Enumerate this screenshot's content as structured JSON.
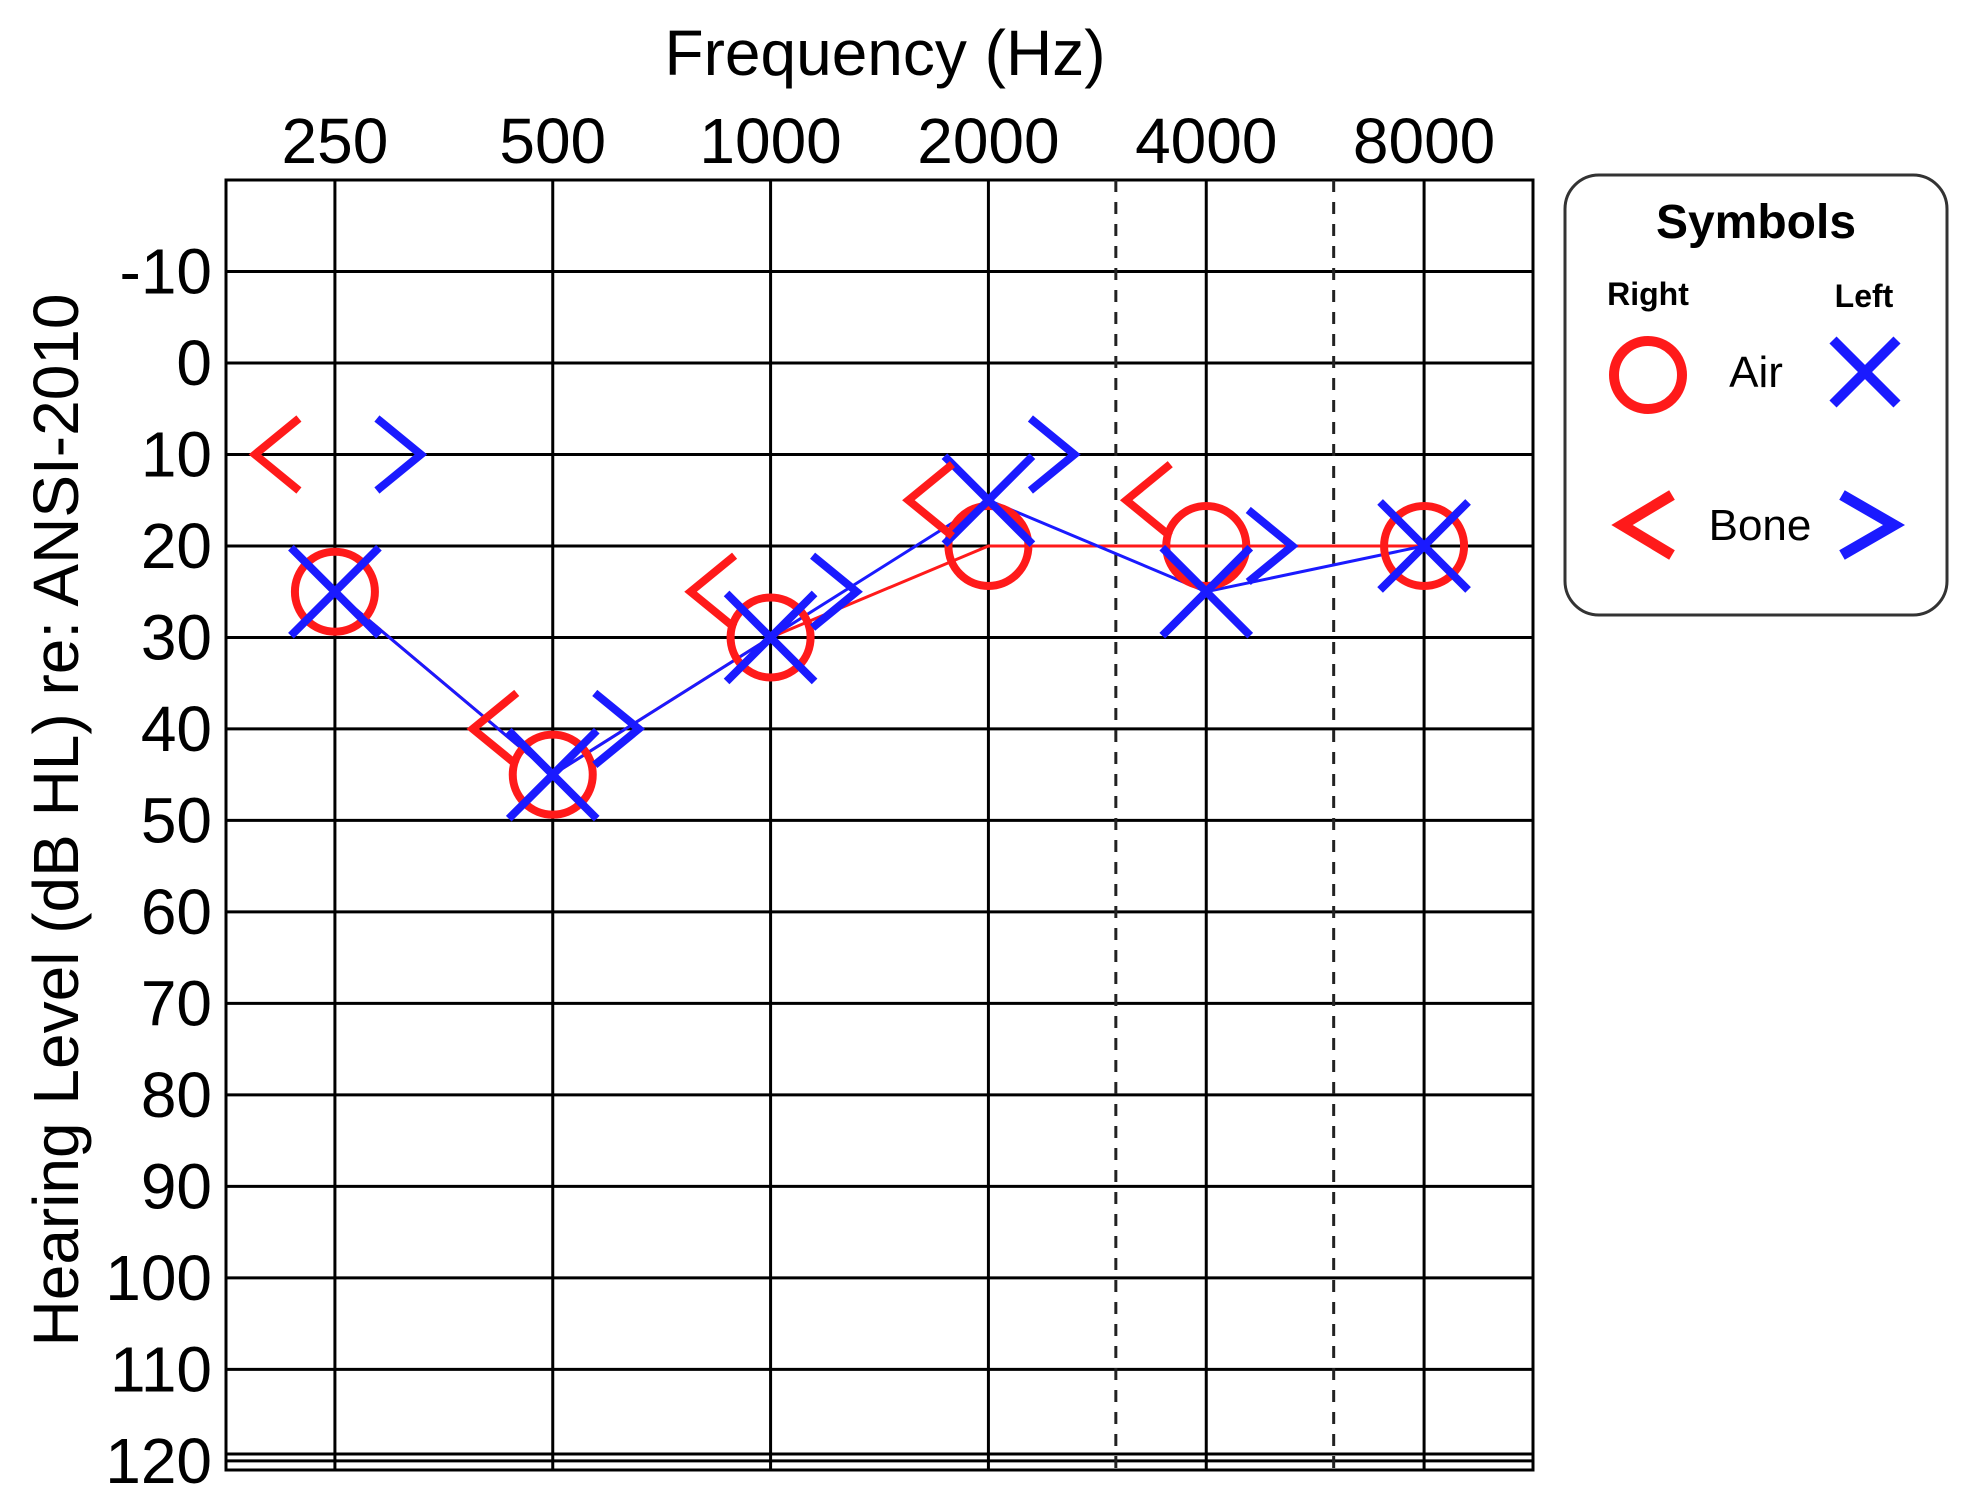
{
  "colors": {
    "right": "#ff1a1a",
    "left": "#1a1aff",
    "grid": "#000000"
  },
  "chart_data": {
    "type": "line",
    "chart_kind": "audiogram",
    "xlabel": "Frequency (Hz)",
    "ylabel": "Hearing Level  (dB HL) re: ANSI-2010",
    "x_axis_position": "top",
    "x_scale": "log2",
    "y_inverted": true,
    "ylim": [
      -20,
      121
    ],
    "grid": true,
    "interoctave_dashed_lines": [
      3000,
      6000
    ],
    "x": [
      250,
      500,
      1000,
      2000,
      4000,
      8000
    ],
    "x_tick_labels": [
      "250",
      "500",
      "1000",
      "2000",
      "4000",
      "8000"
    ],
    "y_ticks": [
      -10,
      0,
      10,
      20,
      30,
      40,
      50,
      60,
      70,
      80,
      90,
      100,
      110,
      120
    ],
    "y_tick_labels": [
      "-10",
      "0",
      "10",
      "20",
      "30",
      "40",
      "50",
      "60",
      "70",
      "80",
      "90",
      "100",
      "110",
      "120"
    ],
    "series": [
      {
        "name": "Right Air",
        "ear": "right",
        "kind": "air",
        "symbol": "circle",
        "color": "#ff1a1a",
        "x": [
          250,
          500,
          1000,
          2000,
          4000,
          8000
        ],
        "values": [
          25,
          45,
          30,
          20,
          20,
          20
        ],
        "connected": true
      },
      {
        "name": "Left Air",
        "ear": "left",
        "kind": "air",
        "symbol": "x",
        "color": "#1a1aff",
        "x": [
          250,
          500,
          1000,
          2000,
          4000,
          8000
        ],
        "values": [
          25,
          45,
          30,
          15,
          25,
          20
        ],
        "connected": true
      },
      {
        "name": "Right Bone",
        "ear": "right",
        "kind": "bone",
        "symbol": "lt",
        "color": "#ff1a1a",
        "x": [
          250,
          500,
          1000,
          2000,
          4000
        ],
        "values": [
          10,
          40,
          25,
          15,
          15
        ],
        "connected": false
      },
      {
        "name": "Left Bone",
        "ear": "left",
        "kind": "bone",
        "symbol": "gt",
        "color": "#1a1aff",
        "x": [
          250,
          500,
          1000,
          2000,
          4000
        ],
        "values": [
          10,
          40,
          25,
          10,
          20
        ],
        "connected": false
      }
    ],
    "legend": {
      "placement": "right",
      "title": "Symbols",
      "right_label": "Right",
      "left_label": "Left",
      "air_label": "Air",
      "bone_label": "Bone"
    }
  }
}
